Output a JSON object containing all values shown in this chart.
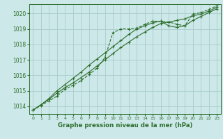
{
  "title": "Graphe pression niveau de la mer (hPa)",
  "bg_color": "#cce8e8",
  "grid_color": "#aacccc",
  "line_color": "#2d6e2d",
  "xlim": [
    -0.5,
    23.5
  ],
  "ylim": [
    1013.5,
    1020.6
  ],
  "yticks": [
    1014,
    1015,
    1016,
    1017,
    1018,
    1019,
    1020
  ],
  "xticks": [
    0,
    1,
    2,
    3,
    4,
    5,
    6,
    7,
    8,
    9,
    10,
    11,
    12,
    13,
    14,
    15,
    16,
    17,
    18,
    19,
    20,
    21,
    22,
    23
  ],
  "series1_x": [
    0,
    1,
    2,
    3,
    4,
    5,
    6,
    7,
    8,
    9,
    10,
    11,
    12,
    13,
    14,
    15,
    16,
    17,
    18,
    19,
    20,
    21,
    22,
    23
  ],
  "series1_y": [
    1013.75,
    1014.05,
    1014.35,
    1014.65,
    1015.1,
    1015.35,
    1015.65,
    1016.05,
    1016.45,
    1017.15,
    1018.75,
    1019.0,
    1019.0,
    1019.05,
    1019.3,
    1019.5,
    1019.5,
    1019.45,
    1019.3,
    1019.2,
    1019.95,
    1020.05,
    1020.25,
    1020.5
  ],
  "series2_x": [
    0,
    1,
    2,
    3,
    4,
    5,
    6,
    7,
    8,
    9,
    10,
    11,
    12,
    13,
    14,
    15,
    16,
    17,
    18,
    19,
    20,
    21,
    22,
    23
  ],
  "series2_y": [
    1013.75,
    1014.1,
    1014.45,
    1014.85,
    1015.2,
    1015.5,
    1015.85,
    1016.2,
    1016.6,
    1017.0,
    1017.4,
    1017.8,
    1018.15,
    1018.5,
    1018.8,
    1019.1,
    1019.35,
    1019.45,
    1019.55,
    1019.65,
    1019.85,
    1019.95,
    1020.15,
    1020.4
  ],
  "series3_x": [
    0,
    1,
    2,
    3,
    4,
    5,
    6,
    7,
    8,
    9,
    10,
    11,
    12,
    13,
    14,
    15,
    16,
    17,
    18,
    19,
    20,
    21,
    22,
    23
  ],
  "series3_y": [
    1013.75,
    1014.1,
    1014.5,
    1015.0,
    1015.4,
    1015.8,
    1016.2,
    1016.65,
    1017.05,
    1017.45,
    1017.85,
    1018.25,
    1018.65,
    1019.0,
    1019.2,
    1019.4,
    1019.5,
    1019.2,
    1019.1,
    1019.2,
    1019.55,
    1019.8,
    1020.05,
    1020.3
  ]
}
